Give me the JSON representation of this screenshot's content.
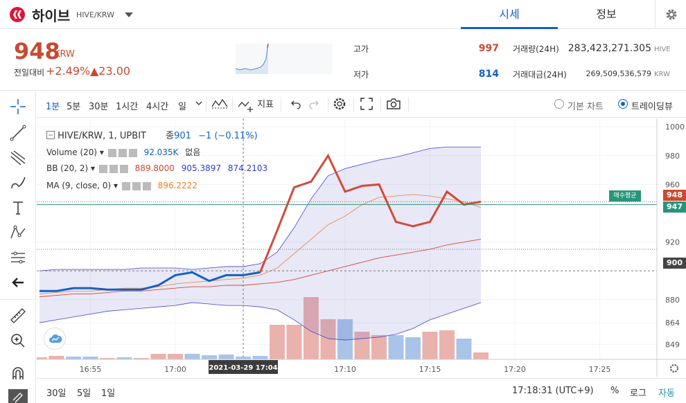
{
  "header": {
    "coin_name": "하이브",
    "pair": "HIVE/KRW",
    "tabs": [
      "시세",
      "정보"
    ]
  },
  "summary": {
    "price": "948",
    "unit": "KRW",
    "prev_label": "전일대비",
    "change_pct": "+2.49%",
    "change_abs": "▲23.00",
    "high_label": "고가",
    "high_value": "997",
    "low_label": "저가",
    "low_value": "814",
    "volume_label": "거래량(24H)",
    "volume_value": "283,423,271.305",
    "volume_unit": "HIVE",
    "amount_label": "거래대금(24H)",
    "amount_value": "269,509,536,579",
    "amount_unit": "KRW"
  },
  "toolbar": {
    "intervals": [
      "1분",
      "5분",
      "30분",
      "1시간",
      "4시간",
      "일"
    ],
    "indicator_label": "지표",
    "basic_chart": "기본 차트",
    "trading_view": "트레이딩뷰"
  },
  "legend": {
    "main": "HIVE/KRW, 1, UPBIT",
    "close_label": "종",
    "close_value": "901",
    "close_change": "−1 (−0.11%)",
    "volume": "Volume (20)",
    "volume_value": "92.035K",
    "volume_extra": "없음",
    "bb": "BB (20, 2)",
    "bb_v1": "889.8000",
    "bb_v2": "905.3897",
    "bb_v3": "874.2103",
    "ma": "MA (9, close, 0)",
    "ma_value": "896.2222"
  },
  "chart_data": {
    "type": "line",
    "x": [
      "16:52",
      "16:53",
      "16:54",
      "16:55",
      "16:56",
      "16:57",
      "16:58",
      "16:59",
      "17:00",
      "17:01",
      "17:02",
      "17:03",
      "17:04",
      "17:05",
      "17:06",
      "17:07",
      "17:08",
      "17:09",
      "17:10",
      "17:11",
      "17:12",
      "17:13",
      "17:14",
      "17:15",
      "17:16",
      "17:17",
      "17:18"
    ],
    "x_ticks": [
      "16:55",
      "17:00",
      "17:10",
      "17:15",
      "17:20",
      "17:25"
    ],
    "y_ticks": [
      1000,
      980,
      960,
      920,
      880,
      864,
      849
    ],
    "ylim": [
      840,
      1002
    ],
    "crosshair_label": "2021-03-29  17:04",
    "price_tags": {
      "current": "948",
      "avg_buy": "947",
      "crosshair": "900"
    },
    "buy_badge": "매수평균",
    "series": [
      {
        "values": [
          886,
          886,
          888,
          888,
          887,
          887,
          887,
          890,
          897,
          899,
          893,
          897,
          897,
          899,
          928,
          958,
          962,
          980,
          955,
          959,
          960,
          934,
          931,
          934,
          955,
          946,
          948
        ]
      },
      {
        "values": [
          882,
          883,
          884,
          884,
          885,
          886,
          886,
          887,
          888,
          889,
          889,
          890,
          890,
          891,
          892,
          894,
          897,
          900,
          903,
          906,
          909,
          911,
          913,
          915,
          918,
          920,
          922
        ]
      },
      {
        "values": [
          884,
          885,
          886,
          886,
          887,
          888,
          888,
          889,
          891,
          892,
          893,
          894,
          895,
          897,
          902,
          912,
          922,
          932,
          938,
          946,
          951,
          952,
          953,
          952,
          950,
          948,
          944
        ]
      },
      {
        "values": [
          900,
          901,
          901,
          901,
          901,
          901,
          902,
          902,
          902,
          901,
          902,
          903,
          903,
          905,
          913,
          930,
          950,
          966,
          971,
          974,
          977,
          979,
          982,
          985,
          986,
          986,
          986
        ]
      },
      {
        "values": [
          864,
          866,
          868,
          870,
          872,
          873,
          874,
          875,
          876,
          878,
          877,
          876,
          876,
          875,
          873,
          866,
          858,
          853,
          852,
          853,
          854,
          856,
          860,
          866,
          870,
          874,
          878
        ]
      }
    ],
    "volume": {
      "values": [
        3,
        5,
        4,
        4,
        2,
        3,
        2,
        8,
        8,
        8,
        6,
        7,
        4,
        5,
        50,
        50,
        90,
        58,
        58,
        40,
        35,
        35,
        32,
        40,
        42,
        30,
        10
      ],
      "up": [
        true,
        true,
        false,
        false,
        true,
        false,
        true,
        true,
        true,
        false,
        false,
        false,
        false,
        false,
        true,
        true,
        true,
        true,
        false,
        true,
        true,
        false,
        false,
        true,
        true,
        false,
        true
      ]
    }
  },
  "footer": {
    "ranges": [
      "30일",
      "5일",
      "1일"
    ],
    "time": "17:18:31 (UTC+9)",
    "percent": "%",
    "log": "로그",
    "auto": "자동"
  }
}
